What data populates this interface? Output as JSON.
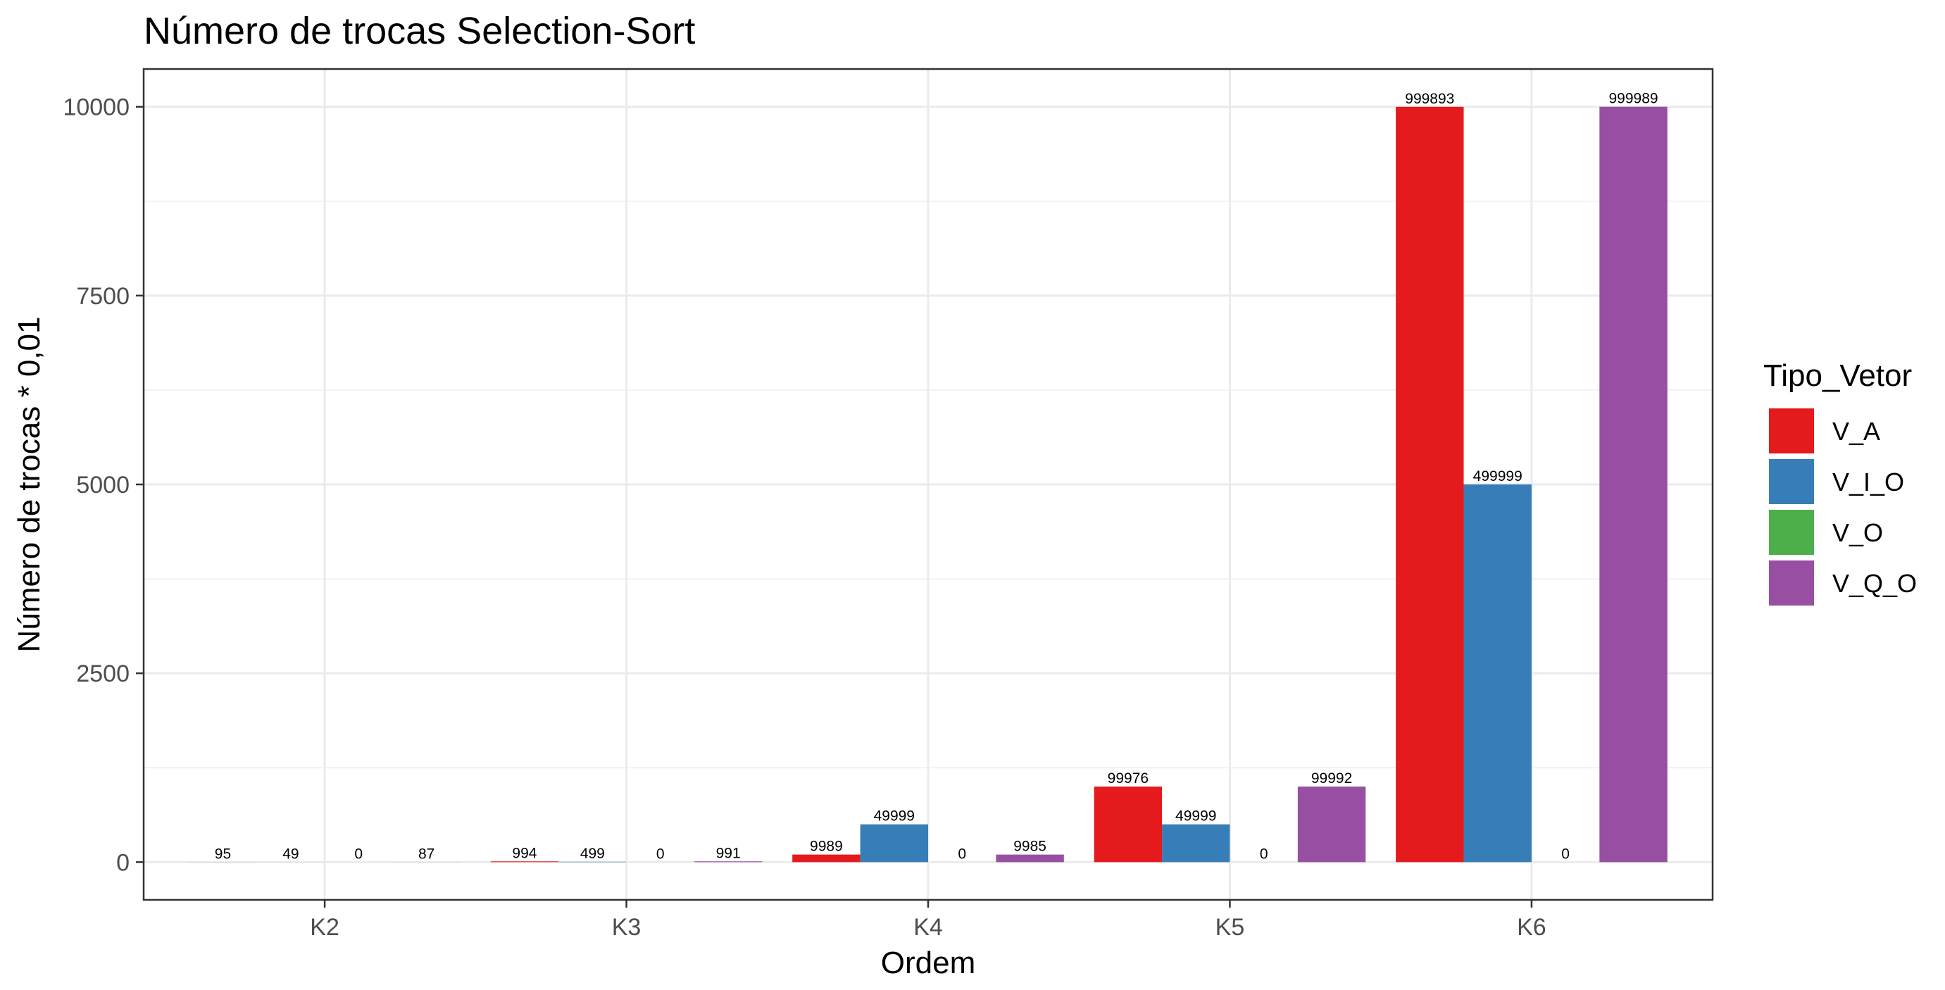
{
  "chart_data": {
    "type": "bar",
    "title": "Número de trocas Selection-Sort",
    "xlabel": "Ordem",
    "ylabel": "Número de trocas * 0,01",
    "categories": [
      "K2",
      "K3",
      "K4",
      "K5",
      "K6"
    ],
    "ylim": [
      -500,
      10500
    ],
    "yticks": [
      0,
      2500,
      5000,
      7500,
      10000
    ],
    "grid": true,
    "legend": {
      "title": "Tipo_Vetor",
      "position": "right"
    },
    "series": [
      {
        "name": "V_A",
        "color": "#E41A1C",
        "values": [
          0.95,
          9.94,
          99.89,
          999.76,
          9998.93
        ],
        "labels": [
          "95",
          "994",
          "9989",
          "99976",
          "999893"
        ]
      },
      {
        "name": "V_I_O",
        "color": "#377EB8",
        "values": [
          0.49,
          4.99,
          499.99,
          499.99,
          4999.99
        ],
        "labels": [
          "49",
          "499",
          "49999",
          "49999",
          "499999"
        ]
      },
      {
        "name": "V_O",
        "color": "#4DAF4A",
        "values": [
          0,
          0,
          0,
          0,
          0
        ],
        "labels": [
          "0",
          "0",
          "0",
          "0",
          "0"
        ]
      },
      {
        "name": "V_Q_O",
        "color": "#984EA3",
        "values": [
          0.87,
          9.91,
          99.85,
          999.92,
          9999.89
        ],
        "labels": [
          "87",
          "991",
          "9985",
          "99992",
          "999989"
        ]
      }
    ]
  }
}
